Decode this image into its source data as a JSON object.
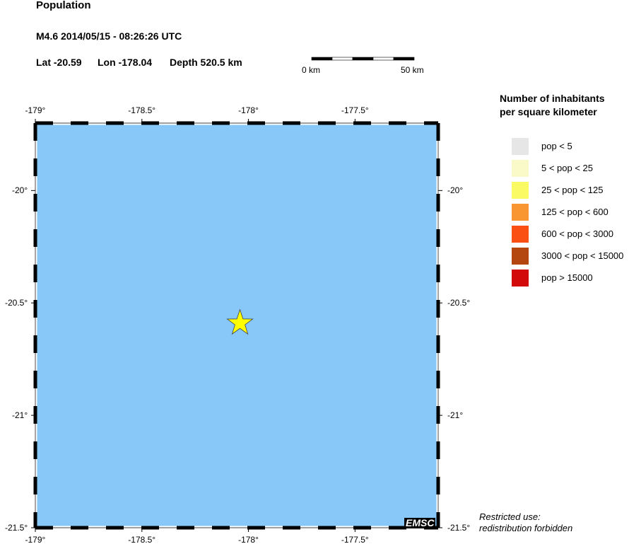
{
  "title": "Population",
  "event": {
    "line1": "M4.6  2014/05/15 - 08:26:26 UTC",
    "lat_label": "Lat -20.59",
    "lon_label": "Lon -178.04",
    "depth_label": "Depth 520.5 km",
    "lat": -20.59,
    "lon": -178.04
  },
  "scale_bar": {
    "start_label": "0 km",
    "end_label": "50 km"
  },
  "map": {
    "water_color": "#87c8f8",
    "lon_ticks": [
      "-179°",
      "-178.5°",
      "-178°",
      "-177.5°"
    ],
    "lat_ticks": [
      "-20°",
      "-20.5°",
      "-21°",
      "-21.5°"
    ],
    "lon_range": [
      -179,
      -177.11
    ],
    "lat_range": [
      -21.5,
      -19.7
    ],
    "epicenter_icon": "star-icon",
    "epicenter_color": "#ffff00"
  },
  "legend": {
    "title_line1": "Number of inhabitants",
    "title_line2": "per square kilometer",
    "items": [
      {
        "label": "pop < 5",
        "color": "#e6e6e6"
      },
      {
        "label": "5 < pop < 25",
        "color": "#fafac8"
      },
      {
        "label": "25 < pop < 125",
        "color": "#fafa64"
      },
      {
        "label": "125 < pop < 600",
        "color": "#fa9632"
      },
      {
        "label": "600 < pop < 3000",
        "color": "#fa5014"
      },
      {
        "label": "3000 < pop < 15000",
        "color": "#b4460f"
      },
      {
        "label": "pop > 15000",
        "color": "#d20a0a"
      }
    ]
  },
  "logo": "EMSC",
  "notice_line1": "Restricted use:",
  "notice_line2": "redistribution forbidden"
}
